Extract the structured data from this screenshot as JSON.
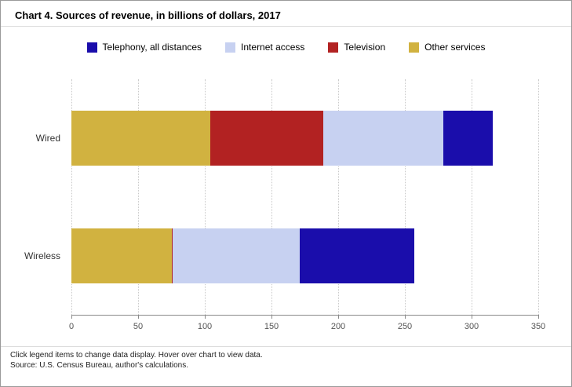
{
  "title": "Chart 4. Sources of revenue, in billions of dollars, 2017",
  "footer": {
    "line1": "Click legend items to change data display. Hover over chart to view data.",
    "line2": "Source: U.S. Census Bureau, author's calculations."
  },
  "chart_data": {
    "type": "bar",
    "orientation": "horizontal",
    "stacked": true,
    "title": "Chart 4. Sources of revenue, in billions of dollars, 2017",
    "categories": [
      "Wired",
      "Wireless"
    ],
    "series": [
      {
        "name": "Telephony, all distances",
        "color": "#1a0dab",
        "values": [
          37,
          86
        ]
      },
      {
        "name": "Internet access",
        "color": "#c7d1f1",
        "values": [
          90,
          95
        ]
      },
      {
        "name": "Television",
        "color": "#b22222",
        "values": [
          85,
          1
        ]
      },
      {
        "name": "Other services",
        "color": "#d1b240",
        "values": [
          104,
          75
        ]
      }
    ],
    "stack_order_reversed": true,
    "xlim": [
      0,
      350
    ],
    "xticks": [
      0,
      50,
      100,
      150,
      200,
      250,
      300,
      350
    ],
    "xlabel": "",
    "ylabel": "",
    "legend_position": "top",
    "grid": "dotted-vertical"
  }
}
